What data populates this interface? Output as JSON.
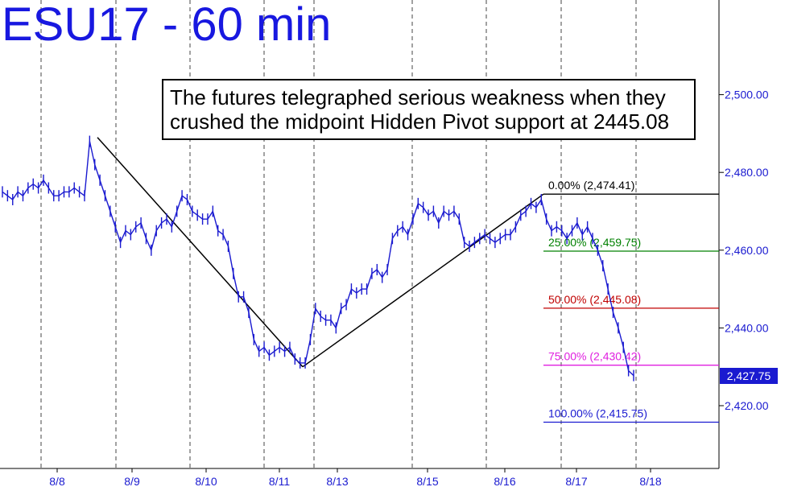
{
  "chart_data": {
    "type": "line",
    "title": "ESU17 - 60 min",
    "annotation": [
      "The futures telegraphed serious weakness when they",
      "crushed the midpoint Hidden Pivot support at 2445.08"
    ],
    "x_tick_labels": [
      "8/8",
      "8/9",
      "8/10",
      "8/11",
      "8/13",
      "8/15",
      "8/16",
      "8/17",
      "8/18"
    ],
    "y_tick_labels": [
      "2,420.00",
      "2,440.00",
      "2,460.00",
      "2,480.00",
      "2,500.00"
    ],
    "ylim": [
      2410,
      2525
    ],
    "grid": "vertical dashed session lines",
    "last_price": "2,427.75",
    "fib_levels": [
      {
        "label": "0.00% (2,474.41)",
        "value": 2474.41,
        "color": "#000000"
      },
      {
        "label": "25.00% (2,459.75)",
        "value": 2459.75,
        "color": "#008000"
      },
      {
        "label": "50.00% (2,445.08)",
        "value": 2445.08,
        "color": "#c00000"
      },
      {
        "label": "75.00% (2,430.42)",
        "value": 2430.42,
        "color": "#e020e0"
      },
      {
        "label": "100.00% (2,415.75)",
        "value": 2415.75,
        "color": "#1a1ad0"
      }
    ],
    "pivot_lines": [
      {
        "from": 2489,
        "to": 2430
      },
      {
        "from": 2430,
        "to": 2474.41
      }
    ],
    "series": [
      {
        "color": "#1a1ad0",
        "values": [
          2475,
          2474,
          2473,
          2475,
          2474,
          2476,
          2477,
          2476,
          2478,
          2476,
          2474,
          2474,
          2475,
          2475,
          2476,
          2475,
          2474,
          2488,
          2482,
          2478,
          2474,
          2470,
          2466,
          2462,
          2465,
          2464,
          2466,
          2467,
          2463,
          2460,
          2465,
          2467,
          2468,
          2466,
          2470,
          2474,
          2473,
          2470,
          2469,
          2468,
          2468,
          2470,
          2465,
          2464,
          2461,
          2454,
          2448,
          2448,
          2444,
          2437,
          2434,
          2435,
          2433,
          2434,
          2435,
          2434,
          2435,
          2432,
          2431,
          2431,
          2437,
          2445,
          2443,
          2442,
          2442,
          2440,
          2445,
          2446,
          2450,
          2449,
          2450,
          2450,
          2454,
          2455,
          2453,
          2455,
          2463,
          2465,
          2466,
          2464,
          2468,
          2472,
          2471,
          2469,
          2470,
          2467,
          2470,
          2469,
          2470,
          2468,
          2462,
          2461,
          2462,
          2463,
          2464,
          2463,
          2462,
          2463,
          2464,
          2464,
          2466,
          2469,
          2470,
          2472,
          2471,
          2473,
          2468,
          2465,
          2466,
          2465,
          2463,
          2465,
          2467,
          2464,
          2466,
          2463,
          2460,
          2456,
          2450,
          2444,
          2440,
          2435,
          2429,
          2427.75
        ]
      }
    ]
  }
}
